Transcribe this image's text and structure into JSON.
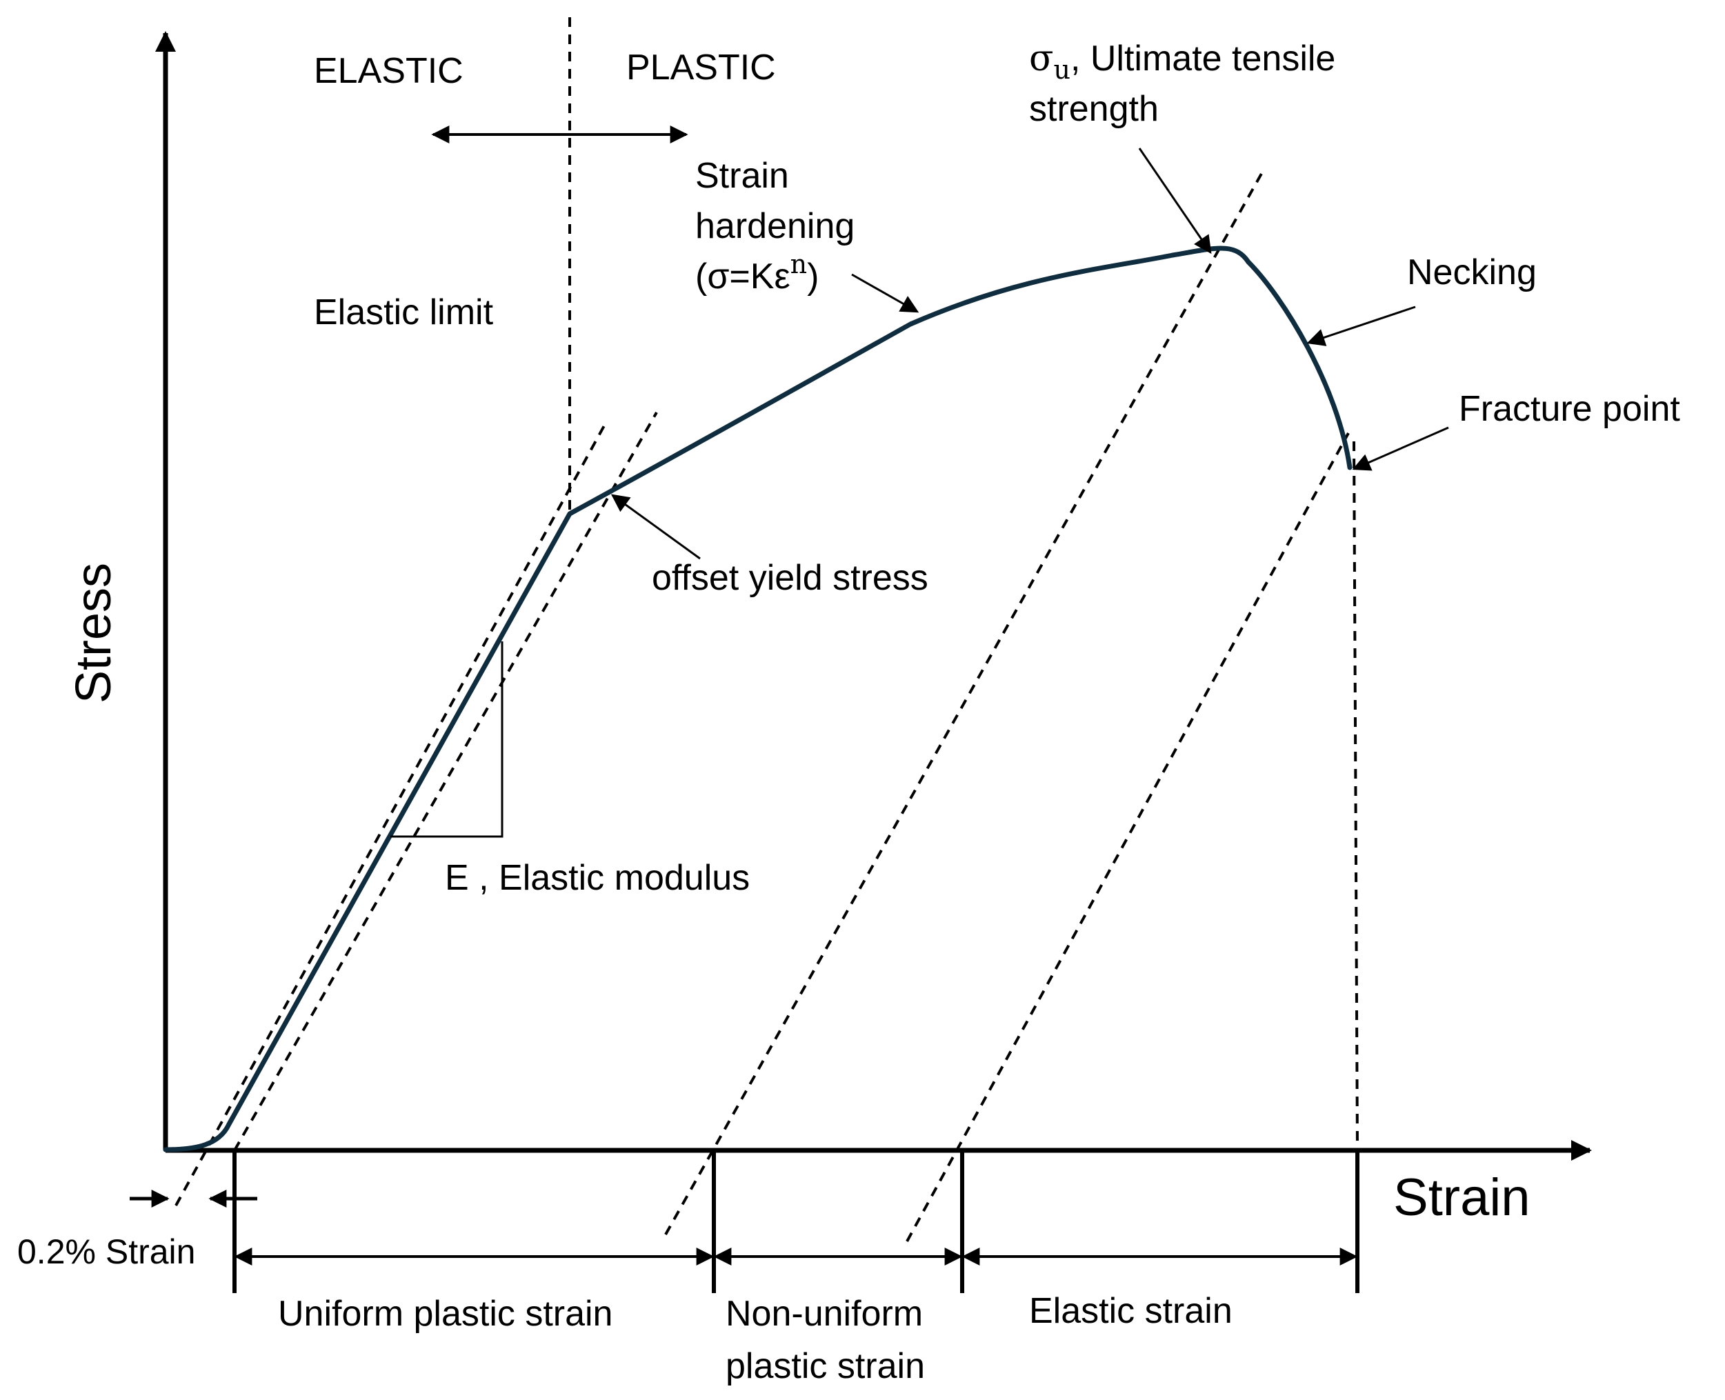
{
  "colors": {
    "curve": "#0f2d3f",
    "ink": "#000000",
    "background": "#ffffff"
  },
  "labels": {
    "elastic": "ELASTIC",
    "plastic": "PLASTIC",
    "sigma_symbol": "σ",
    "sigma_sub": "u",
    "uts_line1": ", Ultimate tensile",
    "uts_line2": "strength",
    "strain_hardening_line1": "Strain",
    "strain_hardening_line2": "hardening",
    "strain_hardening_formula": "(σ=Kε",
    "strain_hardening_exp": "n",
    "strain_hardening_close": ")",
    "elastic_limit": "Elastic limit",
    "necking": "Necking",
    "fracture_point": "Fracture point",
    "offset_yield_stress": "offset yield stress",
    "elastic_modulus": "E , Elastic modulus",
    "stress_axis": "Stress",
    "strain_axis": "Strain",
    "offset_strain": "0.2% Strain",
    "uniform_plastic_strain": "Uniform plastic strain",
    "nonuniform_line1": "Non-uniform",
    "nonuniform_line2": "plastic strain",
    "elastic_strain": "Elastic strain"
  }
}
